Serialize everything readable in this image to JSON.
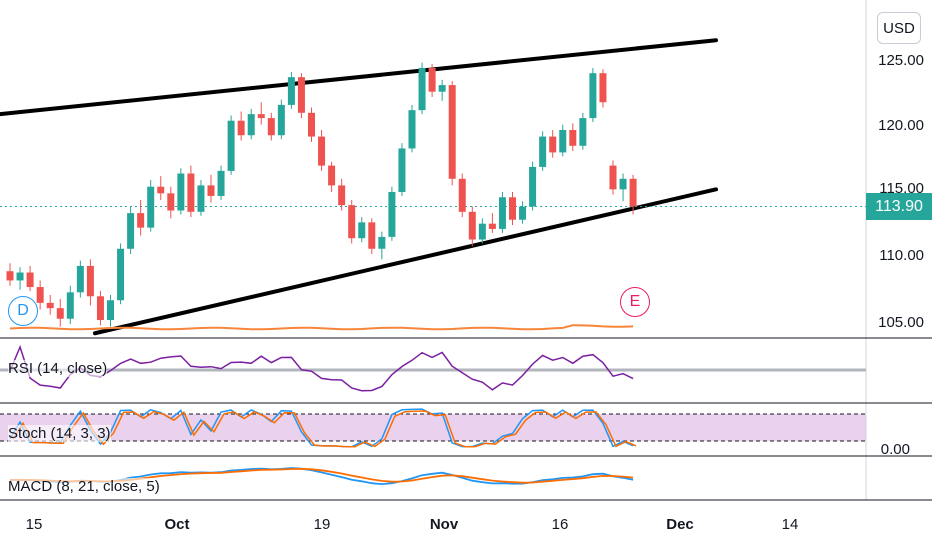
{
  "currency": "USD",
  "last_price": "113.90",
  "price_axis": {
    "ticks": [
      "125.00",
      "120.00",
      "115.00",
      "110.00",
      "105.00"
    ]
  },
  "x_axis": {
    "ticks": [
      {
        "label": "15",
        "bold": false
      },
      {
        "label": "Oct",
        "bold": true
      },
      {
        "label": "19",
        "bold": false
      },
      {
        "label": "Nov",
        "bold": true
      },
      {
        "label": "16",
        "bold": false
      },
      {
        "label": "Dec",
        "bold": true
      },
      {
        "label": "14",
        "bold": false
      }
    ]
  },
  "markers": {
    "dividends": "D",
    "earnings": "E"
  },
  "indicators": {
    "rsi": {
      "label": "RSI (14, close)"
    },
    "stoch": {
      "label": "Stoch (14, 3, 3)",
      "axis_value": "0.00"
    },
    "macd": {
      "label": "MACD (8, 21, close, 5)"
    }
  },
  "colors": {
    "up": "#26a69a",
    "down": "#ef5350",
    "volume_line": "#f7853a",
    "rsi": "#7b1fa2",
    "stoch_k": "#2196f3",
    "stoch_d": "#ff6d00",
    "stoch_band": "#e1bee7",
    "macd": "#2196f3",
    "signal": "#ff6d00",
    "trendline": "#000000",
    "dividend": "#2196f3",
    "earnings": "#e91e63"
  },
  "chart_data": {
    "type": "candlestick",
    "y_range": [
      104.3,
      130.0
    ],
    "candles": [
      {
        "date": "Sep 10",
        "open": 109.0,
        "high": 109.6,
        "low": 107.9,
        "close": 108.3
      },
      {
        "date": "Sep 11",
        "open": 108.3,
        "high": 109.3,
        "low": 107.6,
        "close": 108.9
      },
      {
        "date": "Sep 14",
        "open": 108.9,
        "high": 109.4,
        "low": 107.5,
        "close": 107.8
      },
      {
        "date": "Sep 15",
        "open": 107.8,
        "high": 108.3,
        "low": 106.1,
        "close": 106.6
      },
      {
        "date": "Sep 16",
        "open": 106.6,
        "high": 107.2,
        "low": 105.7,
        "close": 106.2
      },
      {
        "date": "Sep 17",
        "open": 106.2,
        "high": 106.9,
        "low": 104.8,
        "close": 105.4
      },
      {
        "date": "Sep 18",
        "open": 105.4,
        "high": 107.9,
        "low": 105.0,
        "close": 107.4
      },
      {
        "date": "Sep 21",
        "open": 107.4,
        "high": 109.8,
        "low": 107.0,
        "close": 109.4
      },
      {
        "date": "Sep 22",
        "open": 109.4,
        "high": 109.9,
        "low": 106.4,
        "close": 107.1
      },
      {
        "date": "Sep 23",
        "open": 107.1,
        "high": 107.5,
        "low": 104.9,
        "close": 105.3
      },
      {
        "date": "Sep 24",
        "open": 105.3,
        "high": 107.2,
        "low": 104.8,
        "close": 106.8
      },
      {
        "date": "Sep 25",
        "open": 106.8,
        "high": 111.1,
        "low": 106.5,
        "close": 110.7
      },
      {
        "date": "Sep 28",
        "open": 110.7,
        "high": 113.9,
        "low": 110.3,
        "close": 113.4
      },
      {
        "date": "Sep 29",
        "open": 113.4,
        "high": 114.4,
        "low": 111.7,
        "close": 112.3
      },
      {
        "date": "Sep 30",
        "open": 112.3,
        "high": 115.9,
        "low": 112.0,
        "close": 115.4
      },
      {
        "date": "Oct 1",
        "open": 115.4,
        "high": 116.2,
        "low": 114.4,
        "close": 114.9
      },
      {
        "date": "Oct 2",
        "open": 114.9,
        "high": 115.4,
        "low": 113.0,
        "close": 113.6
      },
      {
        "date": "Oct 5",
        "open": 113.6,
        "high": 116.8,
        "low": 113.3,
        "close": 116.4
      },
      {
        "date": "Oct 6",
        "open": 116.4,
        "high": 117.0,
        "low": 113.1,
        "close": 113.5
      },
      {
        "date": "Oct 7",
        "open": 113.5,
        "high": 115.9,
        "low": 113.2,
        "close": 115.5
      },
      {
        "date": "Oct 8",
        "open": 115.5,
        "high": 116.3,
        "low": 114.2,
        "close": 114.7
      },
      {
        "date": "Oct 9",
        "open": 114.7,
        "high": 117.0,
        "low": 114.4,
        "close": 116.6
      },
      {
        "date": "Oct 12",
        "open": 116.6,
        "high": 120.8,
        "low": 116.3,
        "close": 120.4
      },
      {
        "date": "Oct 13",
        "open": 120.4,
        "high": 121.1,
        "low": 118.9,
        "close": 119.3
      },
      {
        "date": "Oct 14",
        "open": 119.3,
        "high": 121.3,
        "low": 119.0,
        "close": 120.9
      },
      {
        "date": "Oct 15",
        "open": 120.9,
        "high": 121.8,
        "low": 120.1,
        "close": 120.6
      },
      {
        "date": "Oct 16",
        "open": 120.6,
        "high": 121.0,
        "low": 118.9,
        "close": 119.3
      },
      {
        "date": "Oct 19",
        "open": 119.3,
        "high": 122.0,
        "low": 119.0,
        "close": 121.6
      },
      {
        "date": "Oct 20",
        "open": 121.6,
        "high": 124.1,
        "low": 121.3,
        "close": 123.7
      },
      {
        "date": "Oct 21",
        "open": 123.7,
        "high": 124.0,
        "low": 120.6,
        "close": 121.0
      },
      {
        "date": "Oct 22",
        "open": 121.0,
        "high": 121.4,
        "low": 118.8,
        "close": 119.2
      },
      {
        "date": "Oct 23",
        "open": 119.2,
        "high": 119.7,
        "low": 116.6,
        "close": 117.0
      },
      {
        "date": "Oct 26",
        "open": 117.0,
        "high": 117.3,
        "low": 115.0,
        "close": 115.5
      },
      {
        "date": "Oct 27",
        "open": 115.5,
        "high": 116.0,
        "low": 113.6,
        "close": 114.0
      },
      {
        "date": "Oct 28",
        "open": 114.0,
        "high": 114.4,
        "low": 111.1,
        "close": 111.5
      },
      {
        "date": "Oct 29",
        "open": 111.5,
        "high": 113.1,
        "low": 111.2,
        "close": 112.7
      },
      {
        "date": "Oct 30",
        "open": 112.7,
        "high": 113.0,
        "low": 110.3,
        "close": 110.7
      },
      {
        "date": "Nov 2",
        "open": 110.7,
        "high": 112.0,
        "low": 109.9,
        "close": 111.6
      },
      {
        "date": "Nov 3",
        "open": 111.6,
        "high": 115.4,
        "low": 111.3,
        "close": 115.0
      },
      {
        "date": "Nov 4",
        "open": 115.0,
        "high": 118.7,
        "low": 114.7,
        "close": 118.3
      },
      {
        "date": "Nov 5",
        "open": 118.3,
        "high": 121.6,
        "low": 118.0,
        "close": 121.2
      },
      {
        "date": "Nov 6",
        "open": 121.2,
        "high": 124.8,
        "low": 120.9,
        "close": 124.4
      },
      {
        "date": "Nov 9",
        "open": 124.4,
        "high": 124.7,
        "low": 122.2,
        "close": 122.6
      },
      {
        "date": "Nov 10",
        "open": 122.6,
        "high": 123.5,
        "low": 121.9,
        "close": 123.1
      },
      {
        "date": "Nov 11",
        "open": 123.1,
        "high": 123.4,
        "low": 115.5,
        "close": 116.0
      },
      {
        "date": "Nov 12",
        "open": 116.0,
        "high": 116.4,
        "low": 113.1,
        "close": 113.5
      },
      {
        "date": "Nov 13",
        "open": 113.5,
        "high": 113.9,
        "low": 110.9,
        "close": 111.4
      },
      {
        "date": "Nov 16",
        "open": 111.4,
        "high": 113.0,
        "low": 111.1,
        "close": 112.6
      },
      {
        "date": "Nov 17",
        "open": 112.6,
        "high": 113.4,
        "low": 111.9,
        "close": 112.2
      },
      {
        "date": "Nov 18",
        "open": 112.2,
        "high": 115.0,
        "low": 111.9,
        "close": 114.6
      },
      {
        "date": "Nov 19",
        "open": 114.6,
        "high": 115.0,
        "low": 112.5,
        "close": 112.9
      },
      {
        "date": "Nov 20",
        "open": 112.9,
        "high": 114.3,
        "low": 112.6,
        "close": 113.9
      },
      {
        "date": "Nov 23",
        "open": 113.9,
        "high": 117.3,
        "low": 113.6,
        "close": 116.9
      },
      {
        "date": "Nov 24",
        "open": 116.9,
        "high": 119.6,
        "low": 116.6,
        "close": 119.2
      },
      {
        "date": "Nov 25",
        "open": 119.2,
        "high": 119.7,
        "low": 117.6,
        "close": 118.0
      },
      {
        "date": "Nov 26",
        "open": 118.0,
        "high": 120.1,
        "low": 117.7,
        "close": 119.7
      },
      {
        "date": "Nov 27",
        "open": 119.7,
        "high": 120.2,
        "low": 118.1,
        "close": 118.5
      },
      {
        "date": "Nov 30",
        "open": 118.5,
        "high": 121.0,
        "low": 118.2,
        "close": 120.6
      },
      {
        "date": "Dec 1",
        "open": 120.6,
        "high": 124.4,
        "low": 120.3,
        "close": 124.0
      },
      {
        "date": "Dec 2",
        "open": 124.0,
        "high": 124.3,
        "low": 121.4,
        "close": 121.8
      },
      {
        "date": "Dec 3",
        "open": 117.0,
        "high": 117.4,
        "low": 114.8,
        "close": 115.2
      },
      {
        "date": "Dec 4",
        "open": 115.2,
        "high": 116.4,
        "low": 114.3,
        "close": 116.0
      },
      {
        "date": "Dec 7",
        "open": 116.0,
        "high": 116.3,
        "low": 113.3,
        "close": 113.9
      }
    ],
    "trendlines": [
      {
        "name": "upper",
        "points": [
          [
            0,
            120.9
          ],
          [
            716,
            126.5
          ]
        ]
      },
      {
        "name": "lower",
        "points": [
          [
            95,
            104.3
          ],
          [
            716,
            115.2
          ]
        ]
      }
    ],
    "last_price": 113.9
  }
}
